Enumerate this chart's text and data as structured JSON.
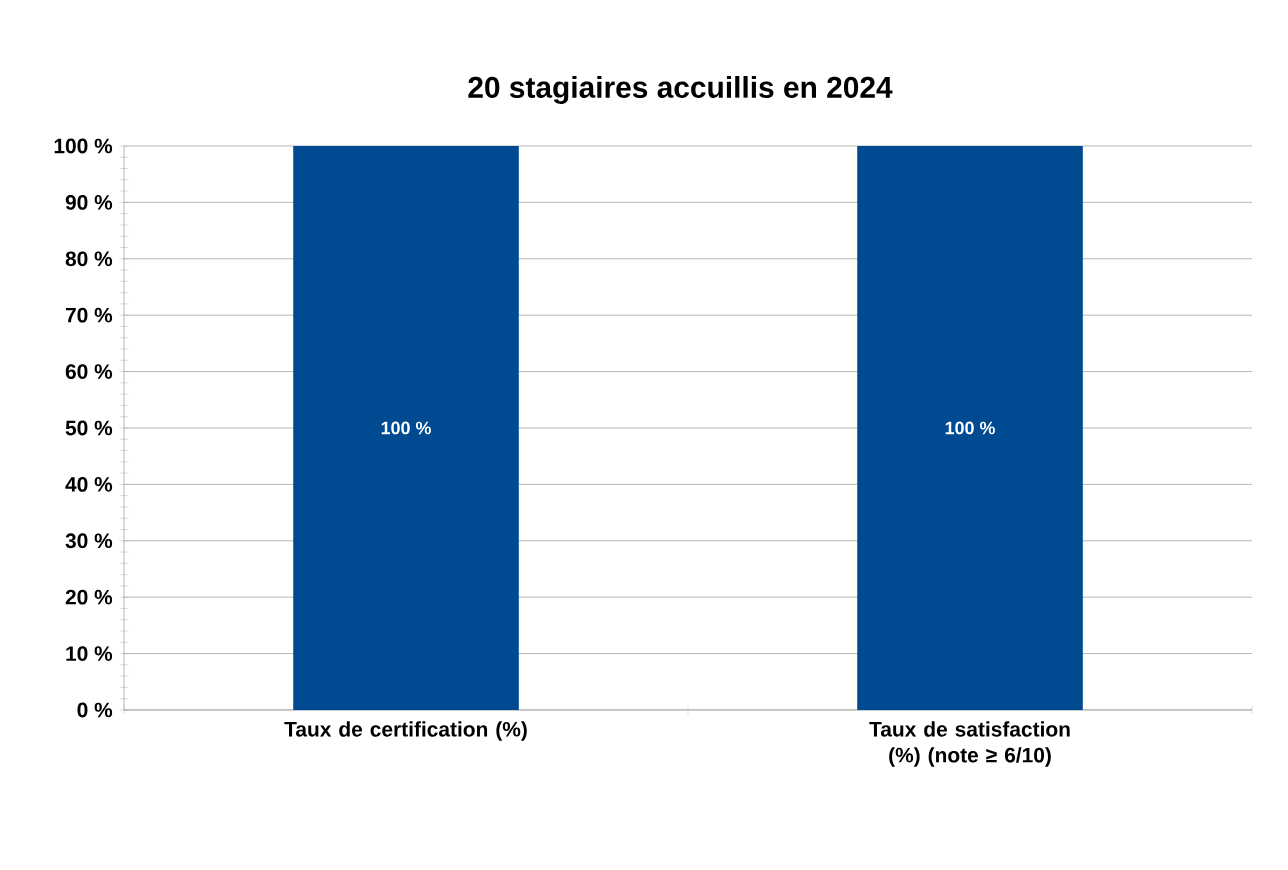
{
  "chart_data": {
    "type": "bar",
    "title": "20 stagiaires accuillis en 2024",
    "categories": [
      "Taux de certification (%)",
      "Taux de satisfaction (%) (note ≥ 6/10)"
    ],
    "values": [
      100,
      100
    ],
    "color": "#004a91",
    "value_labels": [
      "100 %",
      "100 %"
    ],
    "ylim": [
      0,
      100
    ],
    "yticks": [
      {
        "value": 0,
        "label": "0 %"
      },
      {
        "value": 10,
        "label": "10 %"
      },
      {
        "value": 20,
        "label": "20 %"
      },
      {
        "value": 30,
        "label": "30 %"
      },
      {
        "value": 40,
        "label": "40 %"
      },
      {
        "value": 50,
        "label": "50 %"
      },
      {
        "value": 60,
        "label": "60 %"
      },
      {
        "value": 70,
        "label": "70 %"
      },
      {
        "value": 80,
        "label": "80 %"
      },
      {
        "value": 90,
        "label": "90 %"
      },
      {
        "value": 100,
        "label": "100 %"
      }
    ],
    "grid": "y"
  }
}
